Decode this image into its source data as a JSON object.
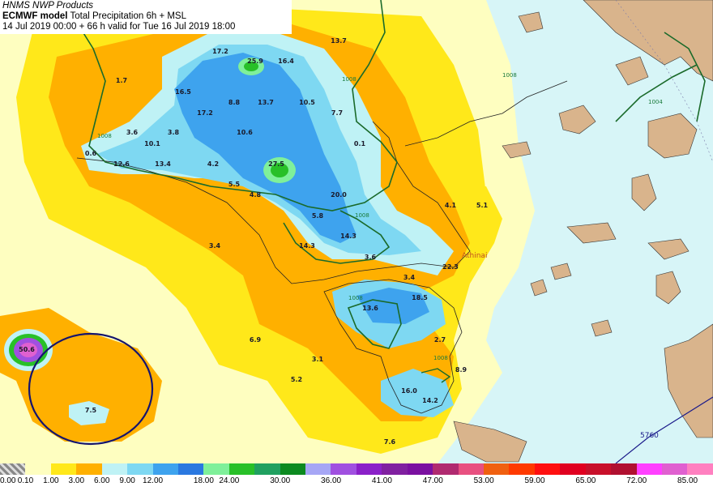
{
  "header": {
    "line1": "HNMS NWP Products",
    "line2_bold": "ECMWF model",
    "line2_rest": " Total Precipitation 6h + MSL",
    "line3": "14 Jul 2019 00:00 + 66 h valid for Tue 16 Jul 2019 18:00"
  },
  "legend": {
    "swatches": [
      "#c8c8c8",
      "#fefec0",
      "#ffe81a",
      "#ffb000",
      "#bff2f5",
      "#7ed8f2",
      "#3ea3ee",
      "#2a78e0",
      "#7ff09a",
      "#28c028",
      "#20a060",
      "#0c8a20",
      "#a6a6f5",
      "#a050e0",
      "#8a20c8",
      "#8020a0",
      "#7a10a0",
      "#b02a70",
      "#e85080",
      "#f06010",
      "#ff3a00",
      "#ff1010",
      "#e00020",
      "#c8102a",
      "#b01030",
      "#ff40ff",
      "#e060d0",
      "#ff80c0"
    ],
    "ticks": [
      {
        "label": "0.00",
        "col": 0
      },
      {
        "label": "0.10",
        "col": 1
      },
      {
        "label": "1.00",
        "col": 2
      },
      {
        "label": "3.00",
        "col": 3
      },
      {
        "label": "6.00",
        "col": 4
      },
      {
        "label": "9.00",
        "col": 5
      },
      {
        "label": "12.00",
        "col": 6
      },
      {
        "label": "18.00",
        "col": 8
      },
      {
        "label": "24.00",
        "col": 9
      },
      {
        "label": "30.00",
        "col": 11
      },
      {
        "label": "36.00",
        "col": 13
      },
      {
        "label": "41.00",
        "col": 15
      },
      {
        "label": "47.00",
        "col": 17
      },
      {
        "label": "53.00",
        "col": 19
      },
      {
        "label": "59.00",
        "col": 21
      },
      {
        "label": "65.00",
        "col": 23
      },
      {
        "label": "72.00",
        "col": 25
      },
      {
        "label": "85.00",
        "col": 27
      }
    ]
  },
  "map": {
    "colors": {
      "sea": "#d7f5f7",
      "light_yellow": "#fefec0",
      "yellow": "#ffe81a",
      "orange": "#ffb000",
      "cyan": "#bff2f5",
      "light_blue": "#7ed8f2",
      "blue": "#3ea3ee",
      "green": "#28c028",
      "land": "#d9b48c",
      "isobar_green": "#1a6a2a",
      "low_circle": "#14146e"
    },
    "values": [
      {
        "text": "13.7",
        "at": [
          418,
          53
        ]
      },
      {
        "text": "17.2",
        "at": [
          272,
          66
        ]
      },
      {
        "text": "25.9",
        "at": [
          315,
          78
        ]
      },
      {
        "text": "16.4",
        "at": [
          353,
          78
        ]
      },
      {
        "text": "1.7",
        "at": [
          150,
          102
        ]
      },
      {
        "text": "16.5",
        "at": [
          226,
          116
        ]
      },
      {
        "text": "8.8",
        "at": [
          289,
          129
        ]
      },
      {
        "text": "13.7",
        "at": [
          328,
          129
        ]
      },
      {
        "text": "10.5",
        "at": [
          379,
          129
        ]
      },
      {
        "text": "17.2",
        "at": [
          253,
          142
        ]
      },
      {
        "text": "7.7",
        "at": [
          416,
          142
        ]
      },
      {
        "text": "3.6",
        "at": [
          163,
          166
        ]
      },
      {
        "text": "3.8",
        "at": [
          214,
          166
        ]
      },
      {
        "text": "10.6",
        "at": [
          302,
          166
        ]
      },
      {
        "text": "10.1",
        "at": [
          188,
          180
        ]
      },
      {
        "text": "0.1",
        "at": [
          444,
          180
        ]
      },
      {
        "text": "0.6",
        "at": [
          112,
          192
        ]
      },
      {
        "text": "12.6",
        "at": [
          150,
          205
        ]
      },
      {
        "text": "13.4",
        "at": [
          201,
          205
        ]
      },
      {
        "text": "4.2",
        "at": [
          263,
          205
        ]
      },
      {
        "text": "27.5",
        "at": [
          341,
          205
        ]
      },
      {
        "text": "5.5",
        "at": [
          289,
          230
        ]
      },
      {
        "text": "4.8",
        "at": [
          315,
          243
        ]
      },
      {
        "text": "20.0",
        "at": [
          418,
          243
        ]
      },
      {
        "text": "4.1",
        "at": [
          556,
          256
        ]
      },
      {
        "text": "5.1",
        "at": [
          595,
          256
        ]
      },
      {
        "text": "5.8",
        "at": [
          392,
          269
        ]
      },
      {
        "text": "14.3",
        "at": [
          430,
          294
        ]
      },
      {
        "text": "3.4",
        "at": [
          265,
          306
        ]
      },
      {
        "text": "14.3",
        "at": [
          379,
          306
        ]
      },
      {
        "text": "3.6",
        "at": [
          457,
          320
        ]
      },
      {
        "text": "22.3",
        "at": [
          556,
          332
        ]
      },
      {
        "text": "3.4",
        "at": [
          505,
          345
        ]
      },
      {
        "text": "18.5",
        "at": [
          518,
          370
        ]
      },
      {
        "text": "13.6",
        "at": [
          457,
          383
        ]
      },
      {
        "text": "6.9",
        "at": [
          315,
          422
        ]
      },
      {
        "text": "50.6",
        "at": [
          33,
          434
        ]
      },
      {
        "text": "2.7",
        "at": [
          543,
          422
        ]
      },
      {
        "text": "3.1",
        "at": [
          392,
          446
        ]
      },
      {
        "text": "8.9",
        "at": [
          569,
          459
        ]
      },
      {
        "text": "5.2",
        "at": [
          366,
          471
        ]
      },
      {
        "text": "16.0",
        "at": [
          505,
          485
        ]
      },
      {
        "text": "14.2",
        "at": [
          531,
          497
        ]
      },
      {
        "text": "7.5",
        "at": [
          112,
          509
        ]
      },
      {
        "text": "7.6",
        "at": [
          481,
          548
        ]
      }
    ],
    "isobar_labels": [
      {
        "text": "1008",
        "at": [
          422,
          100
        ]
      },
      {
        "text": "1008",
        "at": [
          120,
          170
        ]
      },
      {
        "text": "1004",
        "at": [
          800,
          128
        ]
      },
      {
        "text": "1008",
        "at": [
          620,
          95
        ]
      },
      {
        "text": "1008",
        "at": [
          438,
          268
        ]
      },
      {
        "text": "1008",
        "at": [
          430,
          370
        ]
      },
      {
        "text": "1008",
        "at": [
          535,
          444
        ]
      }
    ],
    "city": "Athinai",
    "geopotential_label": "5760"
  }
}
